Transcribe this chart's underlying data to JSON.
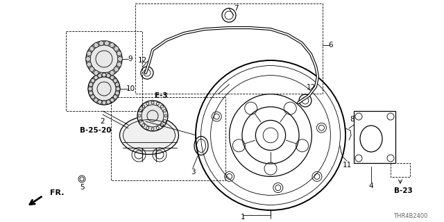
{
  "bg_color": "#ffffff",
  "line_color": "#000000",
  "fig_width": 6.4,
  "fig_height": 3.2,
  "dpi": 100,
  "diagram_code": "THR4B2400",
  "fr_label": "FR."
}
